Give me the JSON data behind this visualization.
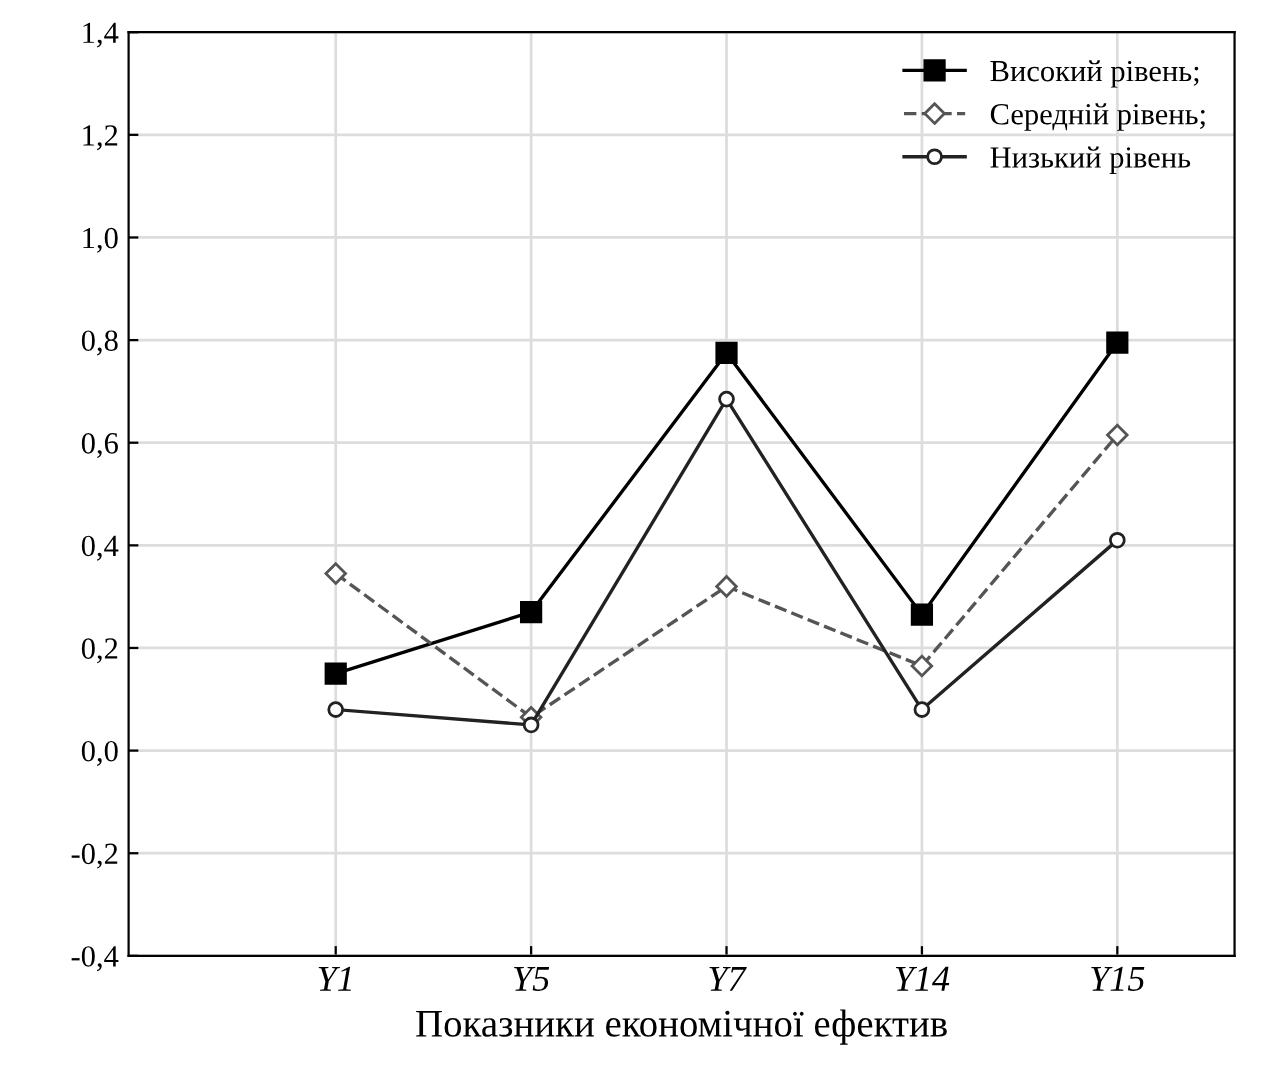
{
  "chart_data": {
    "type": "line",
    "xlabel": "Показники економічної ефектив",
    "categories": [
      "Y1",
      "Y5",
      "Y7",
      "Y14",
      "Y15"
    ],
    "series": [
      {
        "name": "Високий рівень;",
        "color": "#000000",
        "marker": "square",
        "line_style": "solid",
        "values": [
          0.15,
          0.27,
          0.775,
          0.265,
          0.795
        ]
      },
      {
        "name": "Середній рівень;",
        "color": "#555555",
        "marker": "diamond",
        "line_style": "dashed",
        "values": [
          0.345,
          0.065,
          0.32,
          0.165,
          0.615
        ]
      },
      {
        "name": "Низький рівень",
        "color": "#222222",
        "marker": "circle",
        "line_style": "solid",
        "values": [
          0.08,
          0.05,
          0.685,
          0.08,
          0.41
        ]
      }
    ],
    "ylim": [
      -0.4,
      1.4
    ],
    "yticks": [
      {
        "value": -0.4,
        "label": "-0,4"
      },
      {
        "value": -0.2,
        "label": "-0,2"
      },
      {
        "value": 0.0,
        "label": "0,0"
      },
      {
        "value": 0.2,
        "label": "0,2"
      },
      {
        "value": 0.4,
        "label": "0,4"
      },
      {
        "value": 0.6,
        "label": "0,6"
      },
      {
        "value": 0.8,
        "label": "0,8"
      },
      {
        "value": 1.0,
        "label": "1,0"
      },
      {
        "value": 1.2,
        "label": "1,2"
      },
      {
        "value": 1.4,
        "label": "1,4"
      }
    ],
    "grid": true,
    "legend": "top right"
  }
}
